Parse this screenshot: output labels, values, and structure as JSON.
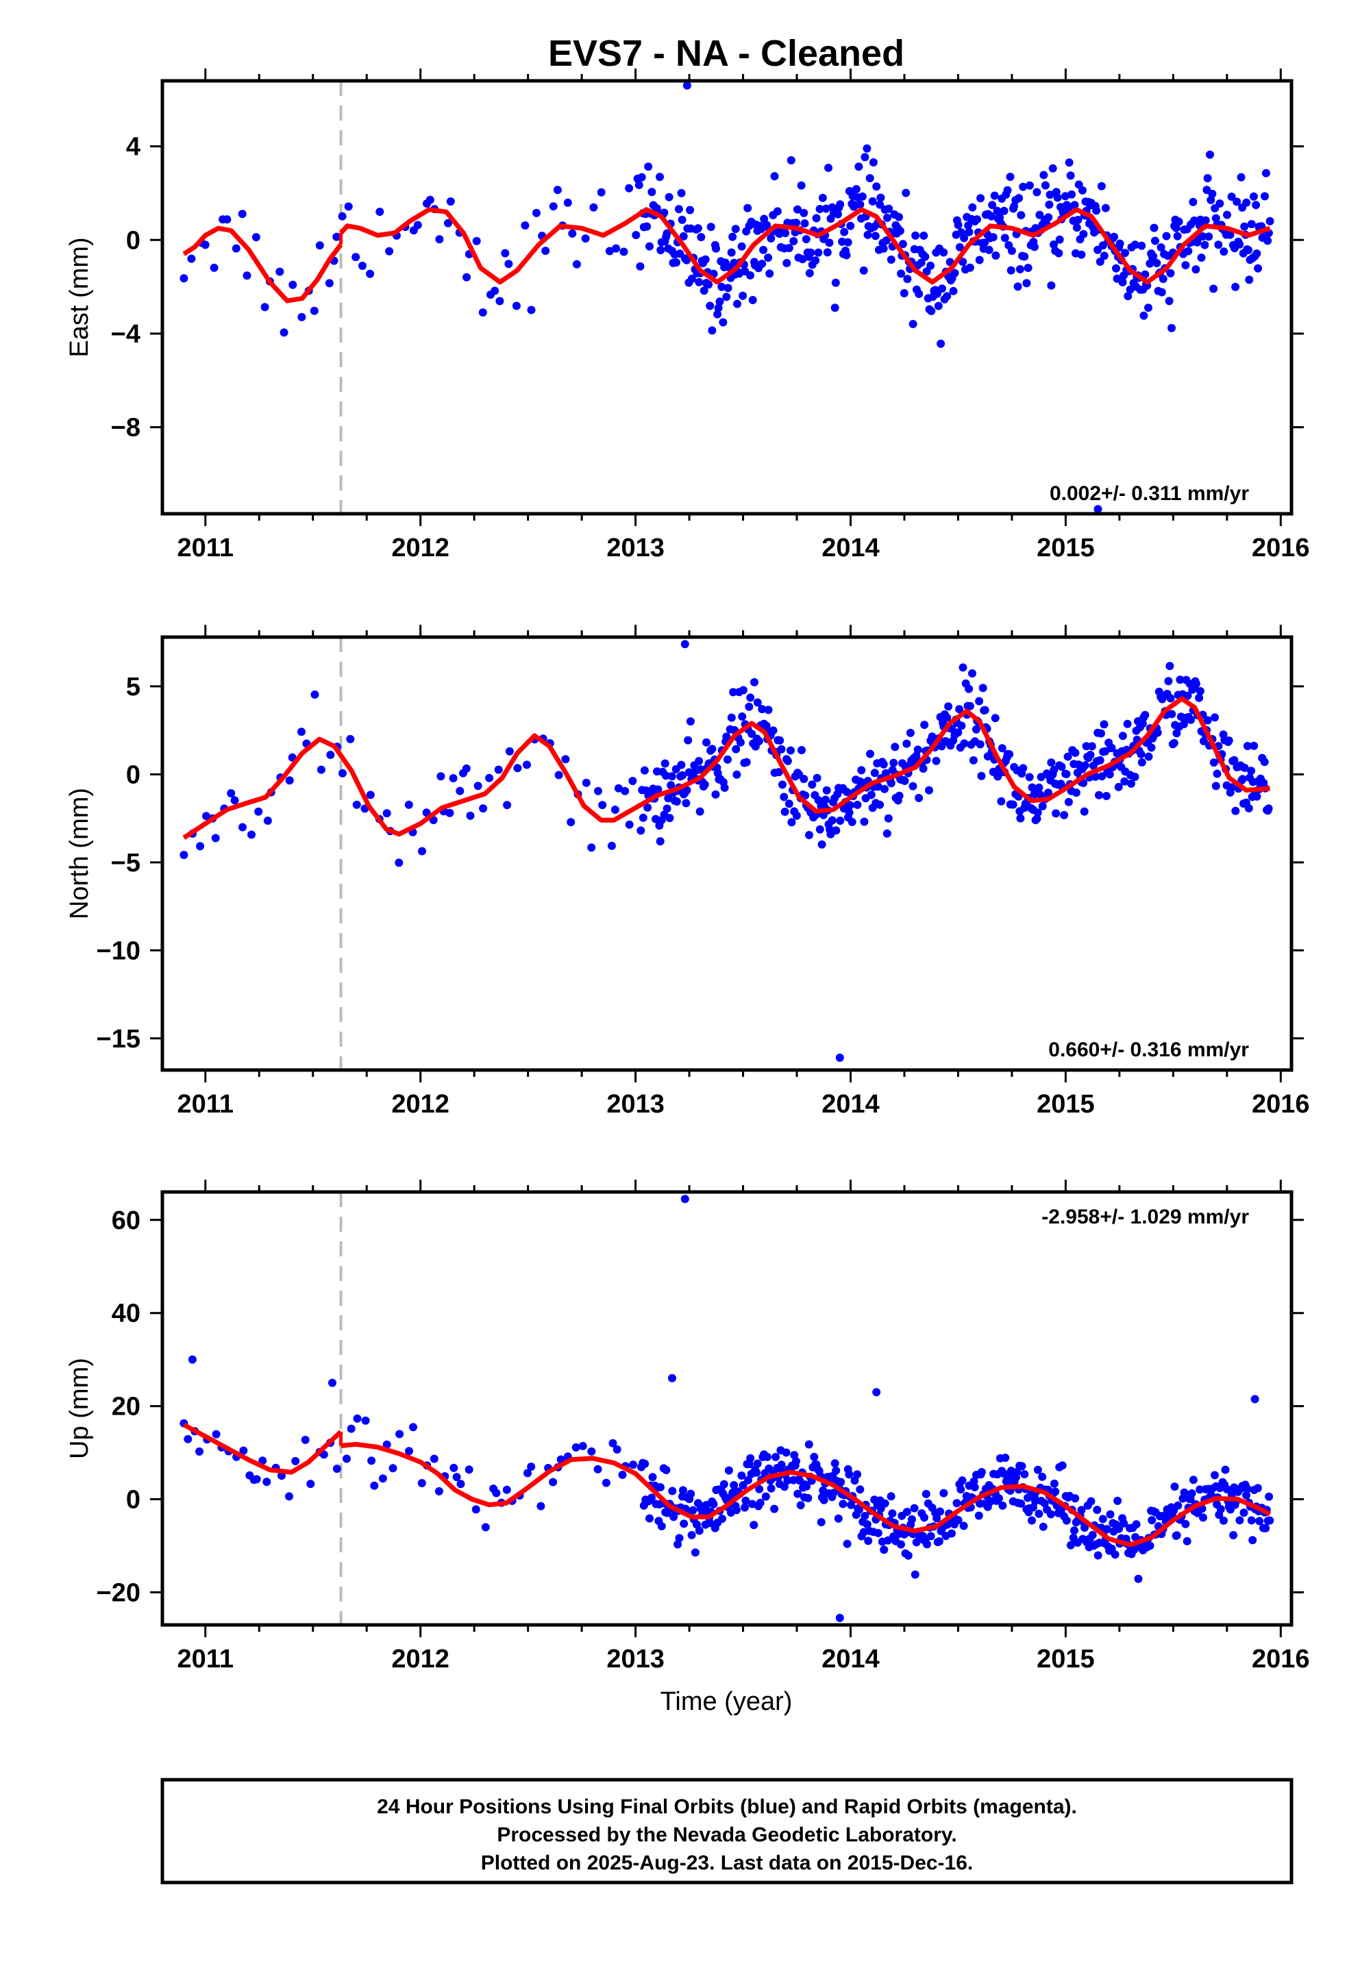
{
  "title": "EVS7  - NA - Cleaned",
  "xlabel": "Time (year)",
  "footer": {
    "line1": "24 Hour Positions Using Final Orbits (blue) and Rapid Orbits (magenta).",
    "line2": "Processed by the Nevada Geodetic Laboratory.",
    "line3": "Plotted on 2025-Aug-23. Last data on 2015-Dec-16."
  },
  "colors": {
    "points": "#0000ff",
    "model": "#ff0000",
    "break": "#bbbbbb",
    "frame": "#000000"
  },
  "chart_data": [
    {
      "type": "scatter",
      "component": "East",
      "ylabel": "East (mm)",
      "rate_label": "0.002+/- 0.311 mm/yr",
      "xlim": [
        2010.8,
        2016.05
      ],
      "ylim": [
        -11.7,
        6.8
      ],
      "xticks": [
        2011,
        2012,
        2013,
        2014,
        2015,
        2016
      ],
      "yticks": [
        4,
        0,
        -4,
        -8
      ],
      "ytick_labels": [
        "4",
        "0",
        "−4",
        "−8"
      ],
      "break_x": 2011.63,
      "model": [
        [
          2010.9,
          -0.6
        ],
        [
          2010.95,
          -0.3
        ],
        [
          2011.0,
          0.2
        ],
        [
          2011.06,
          0.5
        ],
        [
          2011.12,
          0.4
        ],
        [
          2011.2,
          -0.4
        ],
        [
          2011.3,
          -1.8
        ],
        [
          2011.38,
          -2.6
        ],
        [
          2011.45,
          -2.5
        ],
        [
          2011.52,
          -1.7
        ],
        [
          2011.58,
          -0.8
        ],
        [
          2011.63,
          -0.2
        ],
        [
          2011.63,
          0.3
        ],
        [
          2011.66,
          0.6
        ],
        [
          2011.72,
          0.5
        ],
        [
          2011.8,
          0.2
        ],
        [
          2011.88,
          0.3
        ],
        [
          2011.95,
          0.8
        ],
        [
          2012.04,
          1.3
        ],
        [
          2012.12,
          1.2
        ],
        [
          2012.2,
          0.3
        ],
        [
          2012.28,
          -1.2
        ],
        [
          2012.37,
          -1.8
        ],
        [
          2012.45,
          -1.3
        ],
        [
          2012.55,
          -0.2
        ],
        [
          2012.65,
          0.6
        ],
        [
          2012.75,
          0.5
        ],
        [
          2012.85,
          0.2
        ],
        [
          2012.95,
          0.7
        ],
        [
          2013.05,
          1.3
        ],
        [
          2013.12,
          1.0
        ],
        [
          2013.22,
          -0.2
        ],
        [
          2013.3,
          -1.3
        ],
        [
          2013.38,
          -1.8
        ],
        [
          2013.47,
          -1.2
        ],
        [
          2013.55,
          -0.2
        ],
        [
          2013.65,
          0.6
        ],
        [
          2013.75,
          0.5
        ],
        [
          2013.85,
          0.2
        ],
        [
          2013.95,
          0.7
        ],
        [
          2014.05,
          1.3
        ],
        [
          2014.12,
          1.0
        ],
        [
          2014.22,
          -0.3
        ],
        [
          2014.3,
          -1.3
        ],
        [
          2014.38,
          -1.8
        ],
        [
          2014.47,
          -1.2
        ],
        [
          2014.55,
          -0.2
        ],
        [
          2014.65,
          0.6
        ],
        [
          2014.75,
          0.5
        ],
        [
          2014.85,
          0.2
        ],
        [
          2014.95,
          0.7
        ],
        [
          2015.05,
          1.3
        ],
        [
          2015.12,
          1.0
        ],
        [
          2015.22,
          -0.3
        ],
        [
          2015.3,
          -1.3
        ],
        [
          2015.38,
          -1.8
        ],
        [
          2015.47,
          -1.2
        ],
        [
          2015.55,
          -0.2
        ],
        [
          2015.65,
          0.6
        ],
        [
          2015.75,
          0.5
        ],
        [
          2015.85,
          0.2
        ],
        [
          2015.95,
          0.5
        ]
      ],
      "outliers": [
        [
          2013.24,
          6.6
        ],
        [
          2015.15,
          -11.5
        ]
      ],
      "noise": 1.0
    },
    {
      "type": "scatter",
      "component": "North",
      "ylabel": "North (mm)",
      "rate_label": "0.660+/- 0.316 mm/yr",
      "xlim": [
        2010.8,
        2016.05
      ],
      "ylim": [
        -16.8,
        7.8
      ],
      "xticks": [
        2011,
        2012,
        2013,
        2014,
        2015,
        2016
      ],
      "yticks": [
        5,
        0,
        -5,
        -10,
        -15
      ],
      "ytick_labels": [
        "5",
        "0",
        "−5",
        "−10",
        "−15"
      ],
      "break_x": 2011.63,
      "model": [
        [
          2010.9,
          -3.6
        ],
        [
          2011.0,
          -2.8
        ],
        [
          2011.1,
          -2.0
        ],
        [
          2011.2,
          -1.6
        ],
        [
          2011.28,
          -1.3
        ],
        [
          2011.36,
          -0.2
        ],
        [
          2011.45,
          1.2
        ],
        [
          2011.53,
          2.0
        ],
        [
          2011.6,
          1.6
        ],
        [
          2011.68,
          0.2
        ],
        [
          2011.76,
          -1.8
        ],
        [
          2011.84,
          -3.1
        ],
        [
          2011.9,
          -3.4
        ],
        [
          2012.0,
          -2.8
        ],
        [
          2012.1,
          -1.9
        ],
        [
          2012.2,
          -1.5
        ],
        [
          2012.3,
          -1.1
        ],
        [
          2012.38,
          -0.2
        ],
        [
          2012.45,
          1.2
        ],
        [
          2012.53,
          2.2
        ],
        [
          2012.6,
          1.6
        ],
        [
          2012.68,
          0.0
        ],
        [
          2012.76,
          -1.8
        ],
        [
          2012.84,
          -2.6
        ],
        [
          2012.9,
          -2.6
        ],
        [
          2013.0,
          -1.9
        ],
        [
          2013.1,
          -1.2
        ],
        [
          2013.2,
          -0.8
        ],
        [
          2013.3,
          -0.2
        ],
        [
          2013.38,
          0.8
        ],
        [
          2013.46,
          2.2
        ],
        [
          2013.54,
          2.9
        ],
        [
          2013.6,
          2.4
        ],
        [
          2013.68,
          0.5
        ],
        [
          2013.76,
          -1.3
        ],
        [
          2013.84,
          -2.1
        ],
        [
          2013.92,
          -2.0
        ],
        [
          2014.0,
          -1.3
        ],
        [
          2014.1,
          -0.5
        ],
        [
          2014.2,
          -0.1
        ],
        [
          2014.3,
          0.4
        ],
        [
          2014.38,
          1.5
        ],
        [
          2014.46,
          2.9
        ],
        [
          2014.54,
          3.6
        ],
        [
          2014.6,
          3.0
        ],
        [
          2014.68,
          1.0
        ],
        [
          2014.76,
          -0.7
        ],
        [
          2014.84,
          -1.5
        ],
        [
          2014.92,
          -1.4
        ],
        [
          2015.0,
          -0.8
        ],
        [
          2015.1,
          0.0
        ],
        [
          2015.2,
          0.5
        ],
        [
          2015.3,
          1.2
        ],
        [
          2015.38,
          2.2
        ],
        [
          2015.46,
          3.6
        ],
        [
          2015.54,
          4.3
        ],
        [
          2015.6,
          3.8
        ],
        [
          2015.68,
          1.8
        ],
        [
          2015.76,
          -0.2
        ],
        [
          2015.84,
          -0.9
        ],
        [
          2015.95,
          -0.8
        ]
      ],
      "outliers": [
        [
          2013.23,
          7.4
        ],
        [
          2013.95,
          -16.1
        ]
      ],
      "noise": 1.1
    },
    {
      "type": "scatter",
      "component": "Up",
      "ylabel": "Up (mm)",
      "rate_label": "-2.958+/- 1.029 mm/yr",
      "xlim": [
        2010.8,
        2016.05
      ],
      "ylim": [
        -27,
        66
      ],
      "xticks": [
        2011,
        2012,
        2013,
        2014,
        2015,
        2016
      ],
      "yticks": [
        60,
        40,
        20,
        0,
        -20
      ],
      "ytick_labels": [
        "60",
        "40",
        "20",
        "0",
        "−20"
      ],
      "break_x": 2011.63,
      "model": [
        [
          2010.9,
          16.0
        ],
        [
          2011.0,
          13.5
        ],
        [
          2011.1,
          11.0
        ],
        [
          2011.2,
          8.5
        ],
        [
          2011.3,
          6.3
        ],
        [
          2011.4,
          5.8
        ],
        [
          2011.48,
          8.0
        ],
        [
          2011.56,
          11.5
        ],
        [
          2011.63,
          14.5
        ],
        [
          2011.63,
          11.5
        ],
        [
          2011.7,
          11.8
        ],
        [
          2011.8,
          11.2
        ],
        [
          2011.9,
          9.8
        ],
        [
          2012.0,
          8.0
        ],
        [
          2012.08,
          5.5
        ],
        [
          2012.16,
          2.0
        ],
        [
          2012.24,
          0.0
        ],
        [
          2012.32,
          -1.2
        ],
        [
          2012.4,
          -0.8
        ],
        [
          2012.5,
          2.5
        ],
        [
          2012.6,
          6.0
        ],
        [
          2012.7,
          8.5
        ],
        [
          2012.8,
          8.8
        ],
        [
          2012.9,
          7.8
        ],
        [
          2013.0,
          5.5
        ],
        [
          2013.08,
          2.0
        ],
        [
          2013.16,
          -1.5
        ],
        [
          2013.26,
          -3.8
        ],
        [
          2013.34,
          -3.8
        ],
        [
          2013.42,
          -1.5
        ],
        [
          2013.52,
          2.0
        ],
        [
          2013.62,
          4.8
        ],
        [
          2013.72,
          5.8
        ],
        [
          2013.82,
          5.0
        ],
        [
          2013.92,
          3.0
        ],
        [
          2014.02,
          0.0
        ],
        [
          2014.1,
          -2.8
        ],
        [
          2014.2,
          -5.8
        ],
        [
          2014.3,
          -6.8
        ],
        [
          2014.4,
          -5.8
        ],
        [
          2014.5,
          -2.5
        ],
        [
          2014.6,
          0.5
        ],
        [
          2014.7,
          2.5
        ],
        [
          2014.8,
          2.8
        ],
        [
          2014.9,
          1.5
        ],
        [
          2015.0,
          -1.5
        ],
        [
          2015.1,
          -5.0
        ],
        [
          2015.2,
          -8.5
        ],
        [
          2015.3,
          -9.8
        ],
        [
          2015.4,
          -8.2
        ],
        [
          2015.5,
          -4.5
        ],
        [
          2015.6,
          -1.5
        ],
        [
          2015.7,
          0.2
        ],
        [
          2015.8,
          0.0
        ],
        [
          2015.9,
          -2.0
        ],
        [
          2015.95,
          -3.2
        ]
      ],
      "outliers": [
        [
          2013.23,
          64.5
        ],
        [
          2013.17,
          26.0
        ],
        [
          2013.95,
          -25.5
        ],
        [
          2014.12,
          23.0
        ],
        [
          2015.88,
          21.5
        ],
        [
          2011.59,
          25.0
        ],
        [
          2010.94,
          30.0
        ]
      ],
      "noise": 3.2
    }
  ]
}
